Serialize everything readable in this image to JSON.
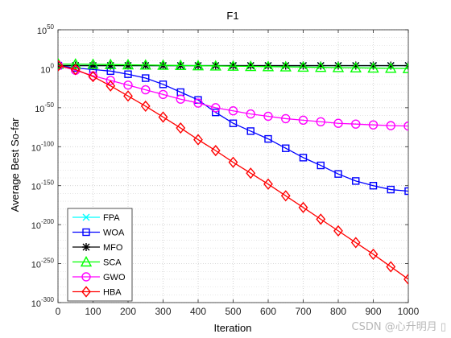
{
  "chart_data": {
    "type": "line",
    "title": "F1",
    "xlabel": "Iteration",
    "ylabel": "Average Best So-far",
    "xlim": [
      0,
      1000
    ],
    "ylim_exponent": [
      -300,
      50
    ],
    "y_scale": "log",
    "grid": true,
    "legend_position": "bottom-left",
    "x_ticks": [
      "0",
      "100",
      "200",
      "300",
      "400",
      "500",
      "600",
      "700",
      "800",
      "900",
      "1000"
    ],
    "y_ticks": [
      {
        "base": "10",
        "exp": "50",
        "exponent": 50
      },
      {
        "base": "10",
        "exp": "0",
        "exponent": 0
      },
      {
        "base": "10",
        "exp": "-50",
        "exponent": -50
      },
      {
        "base": "10",
        "exp": "-100",
        "exponent": -100
      },
      {
        "base": "10",
        "exp": "-150",
        "exponent": -150
      },
      {
        "base": "10",
        "exp": "-200",
        "exponent": -200
      },
      {
        "base": "10",
        "exp": "-250",
        "exponent": -250
      },
      {
        "base": "10",
        "exp": "-300",
        "exponent": -300
      }
    ],
    "series": [
      {
        "name": "FPA",
        "color": "#00ffff",
        "marker": "x",
        "x": [
          1,
          50,
          100,
          150,
          200,
          250,
          300,
          350,
          400,
          450,
          500,
          550,
          600,
          650,
          700,
          750,
          800,
          850,
          900,
          950,
          1000
        ],
        "log10_y": [
          4,
          4,
          4,
          4,
          4,
          4,
          4,
          4,
          4,
          4,
          4,
          4,
          4,
          4,
          4,
          4,
          4,
          4,
          4,
          4,
          4
        ]
      },
      {
        "name": "WOA",
        "color": "#0000ff",
        "marker": "square",
        "x": [
          1,
          50,
          100,
          150,
          200,
          250,
          300,
          350,
          400,
          450,
          500,
          550,
          600,
          650,
          700,
          750,
          800,
          850,
          900,
          950,
          1000
        ],
        "log10_y": [
          4,
          1,
          -1,
          -3,
          -7,
          -12,
          -20,
          -30,
          -40,
          -56,
          -70,
          -80,
          -90,
          -102,
          -114,
          -124,
          -135,
          -144,
          -150,
          -155,
          -157
        ]
      },
      {
        "name": "MFO",
        "color": "#000000",
        "marker": "asterisk",
        "x": [
          1,
          50,
          100,
          150,
          200,
          250,
          300,
          350,
          400,
          450,
          500,
          550,
          600,
          650,
          700,
          750,
          800,
          850,
          900,
          950,
          1000
        ],
        "log10_y": [
          4,
          4,
          4,
          4,
          4,
          4,
          4,
          4,
          4,
          4,
          4,
          4,
          4,
          4,
          4,
          4,
          4,
          4,
          4,
          4,
          4
        ]
      },
      {
        "name": "SCA",
        "color": "#00ff00",
        "marker": "triangle",
        "x": [
          1,
          50,
          100,
          150,
          200,
          250,
          300,
          350,
          400,
          450,
          500,
          550,
          600,
          650,
          700,
          750,
          800,
          850,
          900,
          950,
          1000
        ],
        "log10_y": [
          6,
          6,
          5.7,
          5.4,
          5.1,
          4.8,
          4.5,
          4.2,
          3.9,
          3.6,
          3.3,
          3,
          2.7,
          2.4,
          2.1,
          1.8,
          1.5,
          1.2,
          0.9,
          0.6,
          0.3
        ]
      },
      {
        "name": "GWO",
        "color": "#ff00ff",
        "marker": "circle",
        "x": [
          1,
          50,
          100,
          150,
          200,
          250,
          300,
          350,
          400,
          450,
          500,
          550,
          600,
          650,
          700,
          750,
          800,
          850,
          900,
          950,
          1000
        ],
        "log10_y": [
          4,
          -2,
          -9,
          -15,
          -21,
          -27,
          -33,
          -39,
          -44,
          -50,
          -54,
          -58,
          -61,
          -64,
          -66,
          -68,
          -70,
          -71,
          -72,
          -73,
          -73.5
        ]
      },
      {
        "name": "HBA",
        "color": "#ff0000",
        "marker": "diamond",
        "x": [
          1,
          50,
          100,
          150,
          200,
          250,
          300,
          350,
          400,
          450,
          500,
          550,
          600,
          650,
          700,
          750,
          800,
          850,
          900,
          950,
          1000
        ],
        "log10_y": [
          4,
          -1,
          -10,
          -22,
          -35,
          -48,
          -62,
          -76,
          -91,
          -105,
          -120,
          -134,
          -148,
          -163,
          -178,
          -193,
          -208,
          -223,
          -238,
          -254,
          -270
        ]
      }
    ]
  },
  "watermark": "CSDN @心升明月 ▯"
}
